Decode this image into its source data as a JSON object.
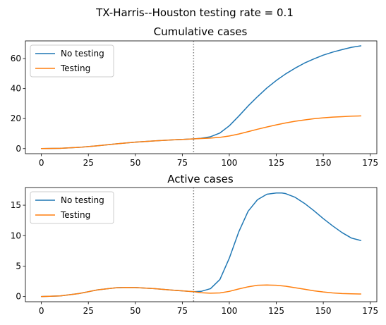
{
  "figure": {
    "suptitle": "TX-Harris--Houston testing rate = 0.1"
  },
  "chart_data": [
    {
      "type": "line",
      "title": "Cumulative cases",
      "xlabel": "",
      "ylabel": "",
      "xlim": [
        -8.5,
        178.5
      ],
      "ylim": [
        -3.4,
        71.8
      ],
      "xticks": [
        0,
        25,
        50,
        75,
        100,
        125,
        150,
        175
      ],
      "yticks": [
        0,
        20,
        40,
        60
      ],
      "grid": false,
      "legend": "upper-left",
      "vline": {
        "x": 81,
        "style": "dotted",
        "color": "#808080"
      },
      "series": [
        {
          "name": "No testing",
          "color": "#1f77b4",
          "x": [
            0,
            10,
            20,
            30,
            40,
            50,
            60,
            70,
            81,
            85,
            90,
            95,
            100,
            105,
            110,
            115,
            120,
            125,
            130,
            135,
            140,
            145,
            150,
            155,
            160,
            165,
            170
          ],
          "y": [
            0,
            0.2,
            0.8,
            1.9,
            3.2,
            4.3,
            5.1,
            5.8,
            6.5,
            6.9,
            7.9,
            10.4,
            15.2,
            21.6,
            28.4,
            34.6,
            40.4,
            45.4,
            49.8,
            53.6,
            57.0,
            59.8,
            62.3,
            64.3,
            66.0,
            67.5,
            68.5
          ]
        },
        {
          "name": "Testing",
          "color": "#ff7f0e",
          "x": [
            0,
            10,
            20,
            30,
            40,
            50,
            60,
            70,
            81,
            85,
            90,
            95,
            100,
            105,
            110,
            115,
            120,
            125,
            130,
            135,
            140,
            145,
            150,
            155,
            160,
            165,
            170
          ],
          "y": [
            0,
            0.2,
            0.8,
            1.9,
            3.2,
            4.3,
            5.1,
            5.8,
            6.5,
            6.7,
            7.0,
            7.5,
            8.4,
            9.7,
            11.3,
            12.9,
            14.4,
            15.8,
            17.1,
            18.2,
            19.1,
            19.9,
            20.5,
            21.0,
            21.3,
            21.6,
            21.8
          ]
        }
      ]
    },
    {
      "type": "line",
      "title": "Active cases",
      "xlabel": "",
      "ylabel": "",
      "xlim": [
        -8.5,
        178.5
      ],
      "ylim": [
        -0.85,
        17.9
      ],
      "xticks": [
        0,
        25,
        50,
        75,
        100,
        125,
        150,
        175
      ],
      "yticks": [
        0,
        5,
        10,
        15
      ],
      "grid": false,
      "legend": "upper-left",
      "vline": {
        "x": 81,
        "style": "dotted",
        "color": "#808080"
      },
      "series": [
        {
          "name": "No testing",
          "color": "#1f77b4",
          "x": [
            0,
            10,
            20,
            30,
            40,
            45,
            50,
            60,
            70,
            81,
            85,
            90,
            95,
            100,
            105,
            110,
            115,
            120,
            125,
            128,
            130,
            135,
            140,
            145,
            150,
            155,
            160,
            165,
            170
          ],
          "y": [
            0,
            0.1,
            0.5,
            1.1,
            1.45,
            1.5,
            1.48,
            1.3,
            1.05,
            0.8,
            0.85,
            1.3,
            2.8,
            6.3,
            10.6,
            14.0,
            15.9,
            16.8,
            17.0,
            17.0,
            16.9,
            16.3,
            15.3,
            14.1,
            12.8,
            11.6,
            10.5,
            9.6,
            9.2
          ]
        },
        {
          "name": "Testing",
          "color": "#ff7f0e",
          "x": [
            0,
            10,
            20,
            30,
            40,
            45,
            50,
            60,
            70,
            81,
            85,
            90,
            95,
            100,
            105,
            110,
            115,
            120,
            125,
            130,
            135,
            140,
            145,
            150,
            155,
            160,
            165,
            170
          ],
          "y": [
            0,
            0.1,
            0.5,
            1.1,
            1.45,
            1.5,
            1.48,
            1.3,
            1.05,
            0.8,
            0.62,
            0.55,
            0.6,
            0.85,
            1.25,
            1.6,
            1.85,
            1.9,
            1.85,
            1.7,
            1.45,
            1.2,
            0.95,
            0.75,
            0.6,
            0.5,
            0.45,
            0.42
          ]
        }
      ]
    }
  ]
}
